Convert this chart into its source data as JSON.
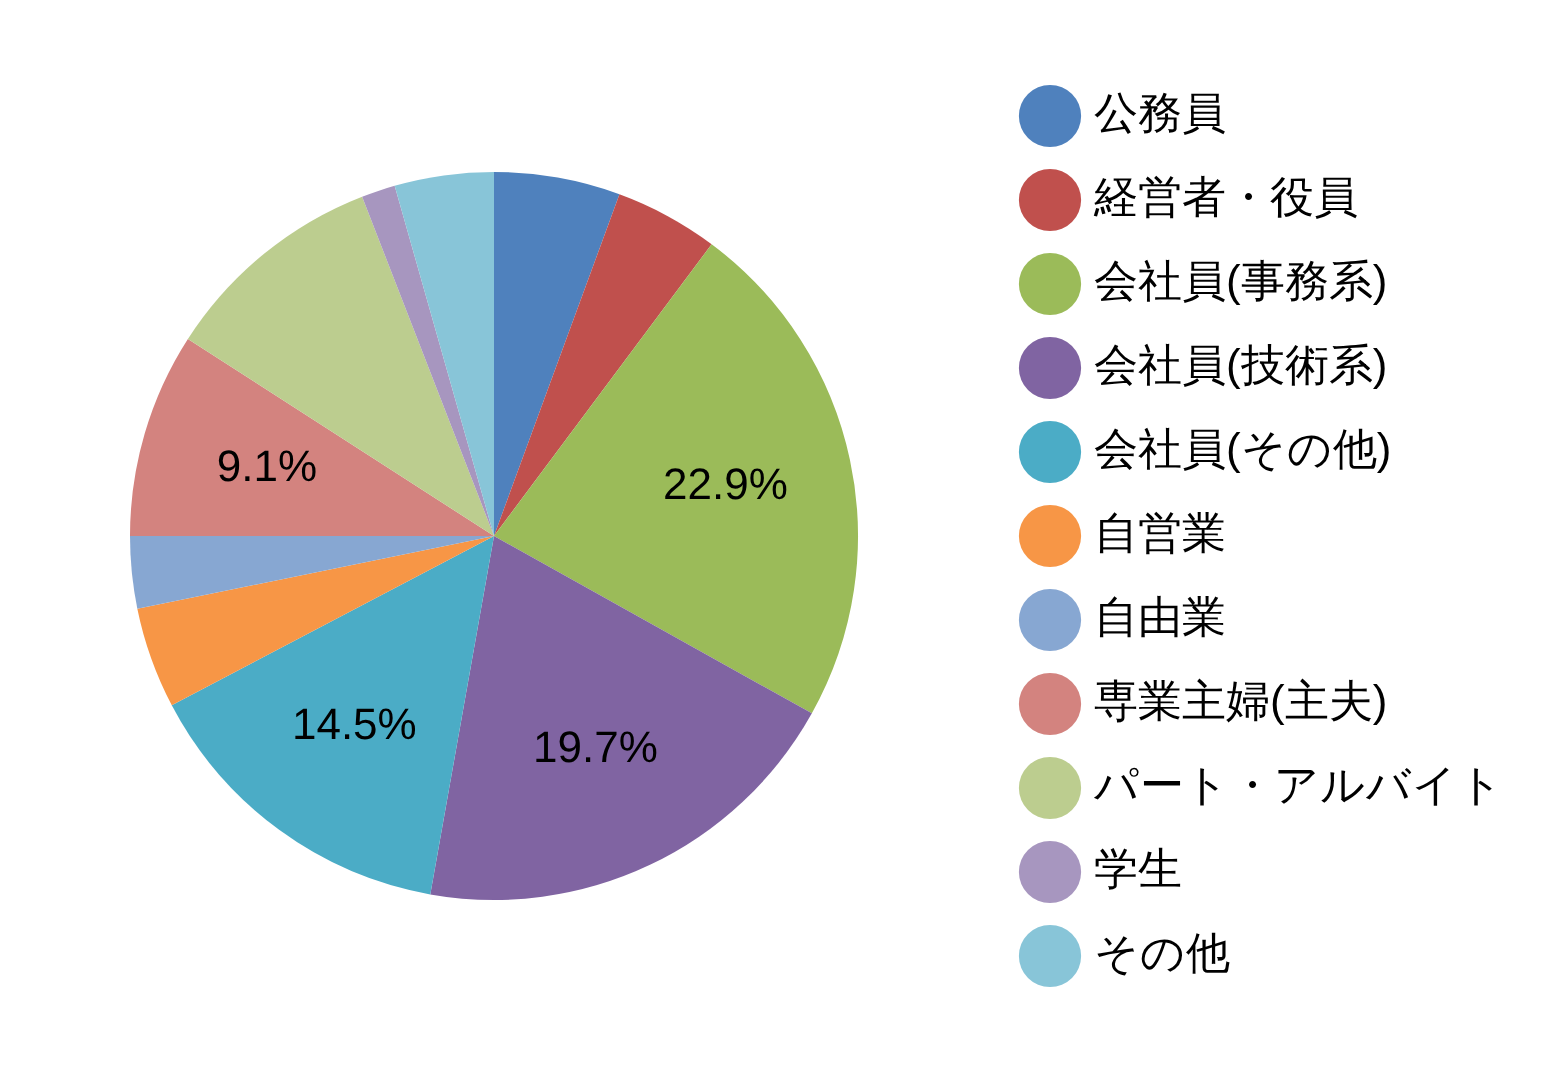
{
  "chart_data": {
    "type": "pie",
    "categories": [
      "公務員",
      "経営者・役員",
      "会社員(事務系)",
      "会社員(技術系)",
      "会社員(その他)",
      "自営業",
      "自由業",
      "専業主婦(主夫)",
      "パート・アルバイト",
      "学生",
      "その他"
    ],
    "values": [
      5.6,
      4.6,
      22.9,
      19.7,
      14.5,
      4.5,
      3.2,
      9.1,
      10.0,
      1.5,
      4.4
    ],
    "colors": [
      "#4f81bd",
      "#c0504d",
      "#9bbb59",
      "#8064a2",
      "#4bacc6",
      "#f79646",
      "#87a7d2",
      "#d3837f",
      "#bccd8f",
      "#a796bf",
      "#88c5d8"
    ],
    "value_labels": [
      null,
      null,
      "22.9%",
      "19.7%",
      "14.5%",
      null,
      null,
      "9.1%",
      null,
      null,
      null
    ],
    "legend": "right"
  }
}
